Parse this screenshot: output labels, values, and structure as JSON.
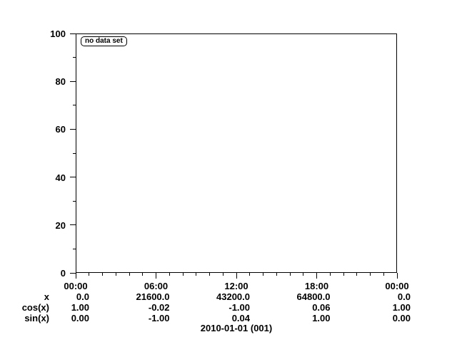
{
  "colors": {
    "background": "#ffffff",
    "foreground": "#000000"
  },
  "chart_data": {
    "type": "line",
    "title": "",
    "series": [],
    "grid": false,
    "legend": {
      "position": "top-left",
      "entries": [
        "no data set"
      ]
    },
    "x_axis": {
      "tick_labels": [
        "00:00",
        "06:00",
        "12:00",
        "18:00",
        "00:00"
      ],
      "minor_ticks_per_interval": 5
    },
    "y_axis": {
      "range": [
        0,
        100
      ],
      "tick_labels": [
        "0",
        "20",
        "40",
        "60",
        "80",
        "100"
      ],
      "minor_ticks_per_interval": 1
    },
    "readout": {
      "rows": [
        {
          "label": "x",
          "values": [
            "0.0",
            "21600.0",
            "43200.0",
            "64800.0",
            "0.0"
          ]
        },
        {
          "label": "cos(x)",
          "values": [
            "1.00",
            "-0.02",
            "-1.00",
            "0.06",
            "1.00"
          ]
        },
        {
          "label": "sin(x)",
          "values": [
            "0.00",
            "-1.00",
            "0.04",
            "1.00",
            "0.00"
          ]
        }
      ]
    },
    "footer": "2010-01-01 (001)"
  }
}
